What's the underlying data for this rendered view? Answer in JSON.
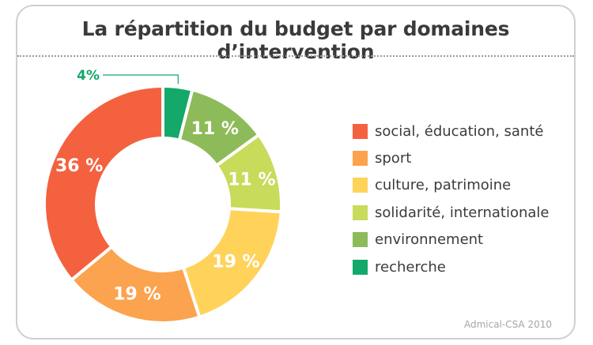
{
  "chart_data": {
    "type": "pie",
    "title": "La répartition du budget par domaines d’intervention",
    "slices": [
      {
        "label": "recherche",
        "value": 4,
        "display": "4%",
        "color": "#14a86a"
      },
      {
        "label": "environnement",
        "value": 11,
        "display": "11 %",
        "color": "#8dbb59"
      },
      {
        "label": "solidarité, internationale",
        "value": 11,
        "display": "11 %",
        "color": "#c8db5a"
      },
      {
        "label": "culture, patrimoine",
        "value": 19,
        "display": "19 %",
        "color": "#ffd25a"
      },
      {
        "label": "sport",
        "value": 19,
        "display": "19 %",
        "color": "#fba34e"
      },
      {
        "label": "social, éducation, santé",
        "value": 36,
        "display": "36 %",
        "color": "#f4613f"
      }
    ],
    "legend": {
      "placement": "right",
      "items": [
        {
          "label": "social, éducation, santé",
          "color": "#f4613f"
        },
        {
          "label": "sport",
          "color": "#fba34e"
        },
        {
          "label": "culture, patrimoine",
          "color": "#ffd25a"
        },
        {
          "label": "solidarité, internationale",
          "color": "#c8db5a"
        },
        {
          "label": "environnement",
          "color": "#8dbb59"
        },
        {
          "label": "recherche",
          "color": "#14a86a"
        }
      ]
    }
  },
  "source": "Admical-CSA 2010"
}
